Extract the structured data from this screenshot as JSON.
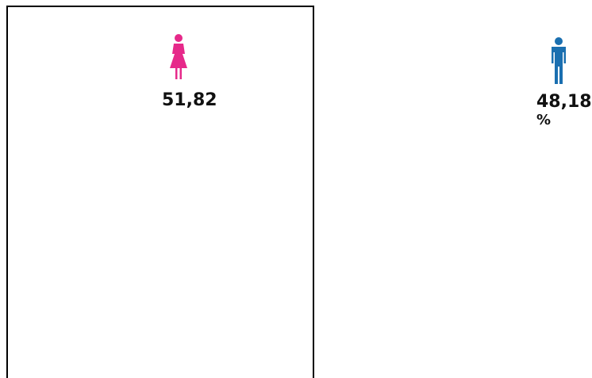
{
  "female": {
    "value": "51,82"
  },
  "male": {
    "value": "48,18",
    "unit": "%"
  }
}
